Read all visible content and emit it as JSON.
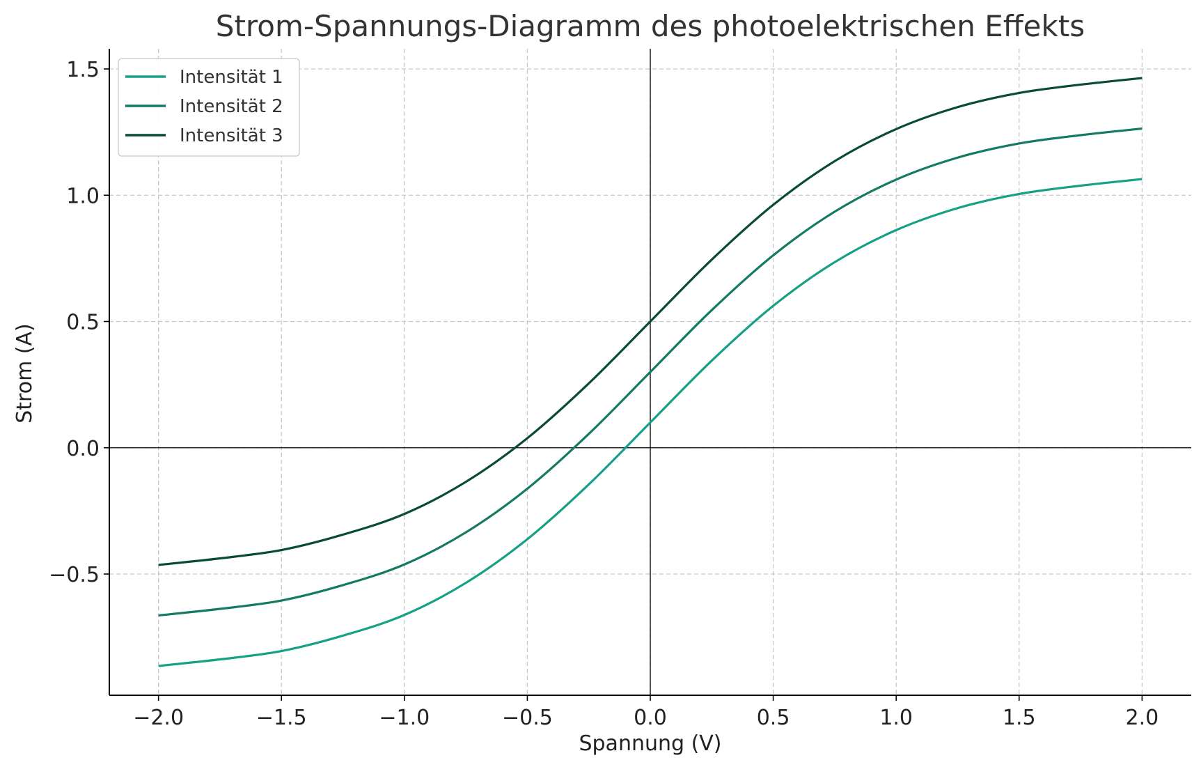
{
  "chart_data": {
    "type": "line",
    "title": "Strom-Spannungs-Diagramm des photoelektrischen Effekts",
    "xlabel": "Spannung (V)",
    "ylabel": "Strom (A)",
    "xlim": [
      -2.2,
      2.2
    ],
    "ylim": [
      -0.98,
      1.58
    ],
    "x_ticks": [
      -2.0,
      -1.5,
      -1.0,
      -0.5,
      0.0,
      0.5,
      1.0,
      1.5,
      2.0
    ],
    "x_tick_labels": [
      "−2.0",
      "−1.5",
      "−1.0",
      "−0.5",
      "0.0",
      "0.5",
      "1.0",
      "1.5",
      "2.0"
    ],
    "y_ticks": [
      -0.5,
      0.0,
      0.5,
      1.0,
      1.5
    ],
    "y_tick_labels": [
      "−0.5",
      "0.0",
      "0.5",
      "1.0",
      "1.5"
    ],
    "grid": true,
    "legend_position": "top-left",
    "x": [
      -2.0,
      -1.75,
      -1.5,
      -1.25,
      -1.0,
      -0.75,
      -0.5,
      -0.25,
      0.0,
      0.25,
      0.5,
      0.75,
      1.0,
      1.25,
      1.5,
      1.75,
      2.0
    ],
    "series": [
      {
        "name": "Intensität 1",
        "color": "#16a085",
        "values": [
          -0.864,
          -0.838,
          -0.805,
          -0.744,
          -0.662,
          -0.535,
          -0.362,
          -0.145,
          0.1,
          0.345,
          0.562,
          0.735,
          0.862,
          0.949,
          1.005,
          1.038,
          1.064
        ]
      },
      {
        "name": "Intensität 2",
        "color": "#147a63",
        "values": [
          -0.664,
          -0.638,
          -0.605,
          -0.544,
          -0.462,
          -0.335,
          -0.162,
          0.055,
          0.3,
          0.545,
          0.762,
          0.935,
          1.062,
          1.149,
          1.205,
          1.238,
          1.264
        ]
      },
      {
        "name": "Intensität 3",
        "color": "#0a4a38",
        "values": [
          -0.464,
          -0.438,
          -0.405,
          -0.344,
          -0.262,
          -0.135,
          0.038,
          0.255,
          0.5,
          0.745,
          0.962,
          1.135,
          1.262,
          1.349,
          1.405,
          1.438,
          1.464
        ]
      }
    ]
  }
}
